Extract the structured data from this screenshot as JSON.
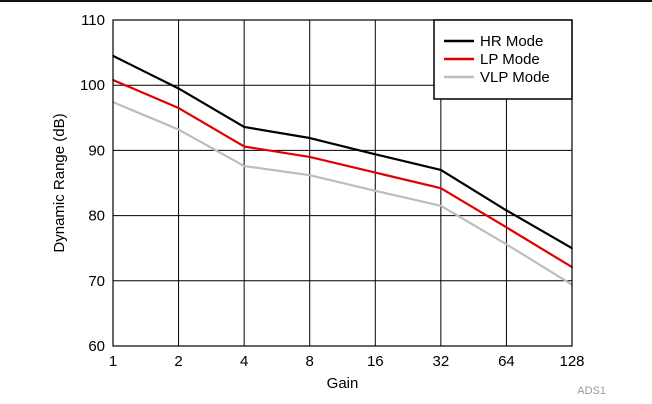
{
  "chart_data": {
    "type": "line",
    "title": "",
    "xlabel": "Gain",
    "ylabel": "Dynamic Range (dB)",
    "x_scale": "log2",
    "categories": [
      "1",
      "2",
      "4",
      "8",
      "16",
      "32",
      "64",
      "128"
    ],
    "x": [
      1,
      2,
      4,
      8,
      16,
      32,
      64,
      128
    ],
    "yticks": [
      "60",
      "70",
      "80",
      "90",
      "100",
      "110"
    ],
    "ylim": [
      60,
      110
    ],
    "grid": true,
    "legend_position": "top-right",
    "series": [
      {
        "name": "HR Mode",
        "color": "#000000",
        "values": [
          104.5,
          99.5,
          93.6,
          91.9,
          89.4,
          87.0,
          80.8,
          75.0
        ]
      },
      {
        "name": "LP Mode",
        "color": "#e00000",
        "values": [
          100.8,
          96.5,
          90.6,
          89.0,
          86.6,
          84.2,
          78.2,
          72.1
        ]
      },
      {
        "name": "VLP Mode",
        "color": "#bdbdbd",
        "values": [
          97.4,
          93.2,
          87.6,
          86.2,
          83.8,
          81.5,
          75.6,
          69.4
        ]
      }
    ]
  },
  "figure_code": "ADS1"
}
